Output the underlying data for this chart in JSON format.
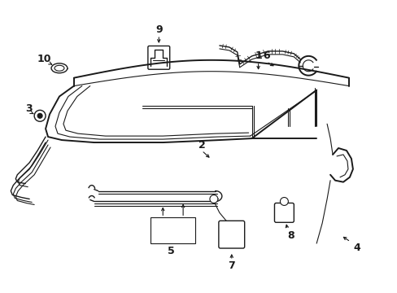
{
  "background_color": "#ffffff",
  "line_color": "#1a1a1a",
  "figsize": [
    4.89,
    3.6
  ],
  "dpi": 100,
  "label_fontsize": 9,
  "lw_main": 1.4,
  "lw_thin": 0.8,
  "lw_med": 1.0
}
